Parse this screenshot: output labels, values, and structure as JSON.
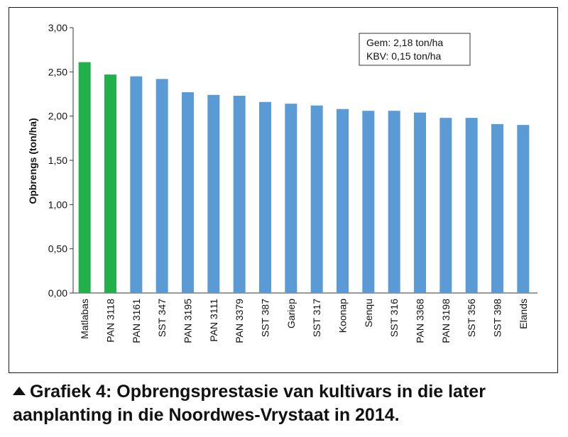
{
  "chart_data": {
    "type": "bar",
    "categories": [
      "Matlabas",
      "PAN 3118",
      "PAN 3161",
      "SST 347",
      "PAN 3195",
      "PAN 3111",
      "PAN 3379",
      "SST 387",
      "Gariep",
      "SST 317",
      "Koonap",
      "Senqu",
      "SST 316",
      "PAN 3368",
      "PAN 3198",
      "SST 356",
      "SST 398",
      "Elands"
    ],
    "values": [
      2.61,
      2.47,
      2.45,
      2.42,
      2.27,
      2.24,
      2.23,
      2.16,
      2.14,
      2.12,
      2.08,
      2.06,
      2.06,
      2.04,
      1.98,
      1.98,
      1.91,
      1.9
    ],
    "highlight": [
      true,
      true,
      false,
      false,
      false,
      false,
      false,
      false,
      false,
      false,
      false,
      false,
      false,
      false,
      false,
      false,
      false,
      false
    ],
    "colors": {
      "highlight": "#22b04b",
      "default": "#5b9bd5"
    },
    "ylabel": "Opbrengs (ton/ha)",
    "ylim": [
      0,
      3
    ],
    "yticks": [
      "0,00",
      "0,50",
      "1,00",
      "1,50",
      "2,00",
      "2,50",
      "3,00"
    ],
    "grid": false,
    "legend_box": {
      "line1": "Gem: 2,18 ton/ha",
      "line2": "KBV: 0,15 ton/ha"
    }
  },
  "caption": {
    "line1": "Grafiek 4: Opbrengsprestasie van kultivars in die later",
    "line2": "aanplanting in die Noordwes-Vrystaat in 2014."
  }
}
